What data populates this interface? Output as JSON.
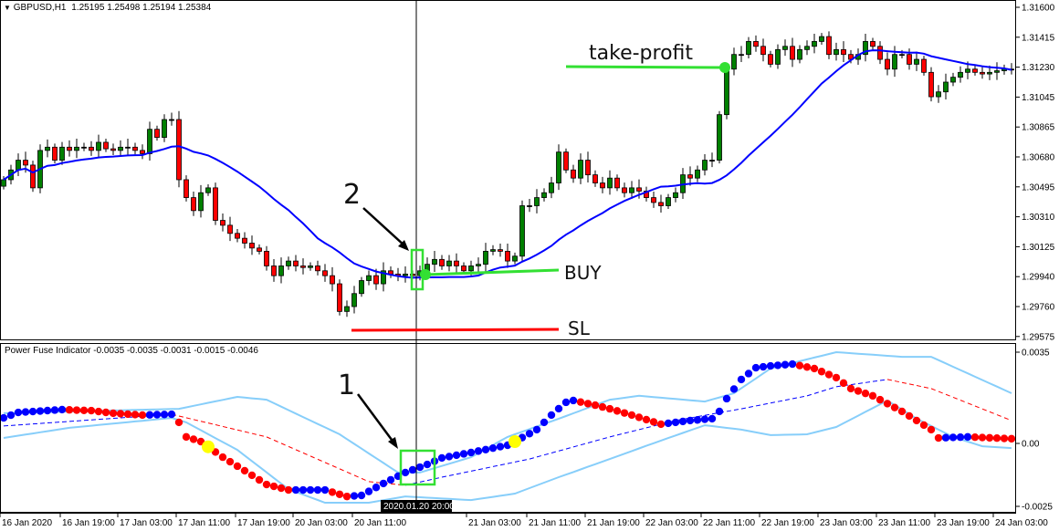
{
  "main_pane": {
    "symbol_label": "GBPUSD,H1",
    "ohlc_readout": "1.25195 1.25498 1.25194 1.25384",
    "menu_icon": "triangle-down-icon"
  },
  "indicator_pane": {
    "label": "Power Fuse Indicator -0.0035 -0.0035 -0.0031 -0.0015 -0.0046"
  },
  "annotations": {
    "take_profit": "take-profit",
    "buy": "BUY",
    "sl": "SL",
    "marker_1": "1",
    "marker_2": "2"
  },
  "crosshair": {
    "time_label": "2020.01.20 20:00"
  },
  "colors": {
    "bull": "#008000",
    "bear": "#ff0000",
    "ma": "#0000ff",
    "band": "#87cefa",
    "signal_up": "#0000ff",
    "signal_down": "#ff0000",
    "dot_up": "#0000ff",
    "dot_down": "#ff0000",
    "dot_signal": "#ffff00",
    "annotation_green": "#33e033",
    "sl_red": "#ff0000"
  },
  "price_axis": [
    "1.31600",
    "1.31415",
    "1.31230",
    "1.31045",
    "1.30865",
    "1.30680",
    "1.30495",
    "1.30310",
    "1.30125",
    "1.29940",
    "1.29760",
    "1.29575"
  ],
  "indicator_axis": [
    "0.0035",
    "0.00",
    "-0.0025"
  ],
  "time_axis": [
    "16 Jan 2020",
    "16 Jan 19:00",
    "17 Jan 03:00",
    "17 Jan 11:00",
    "17 Jan 19:00",
    "20 Jan 03:00",
    "20 Jan 11:00",
    "21 Jan 03:00",
    "21 Jan 11:00",
    "21 Jan 19:00",
    "22 Jan 03:00",
    "22 Jan 11:00",
    "22 Jan 19:00",
    "23 Jan 03:00",
    "23 Jan 11:00",
    "23 Jan 19:00",
    "24 Jan 03:00"
  ],
  "chart_data": [
    {
      "type": "candlestick",
      "title": "GBPUSD,H1",
      "ylim": [
        1.29575,
        1.316
      ],
      "close": [
        1.3054,
        1.306,
        1.3066,
        1.3063,
        1.3049,
        1.3072,
        1.3074,
        1.3066,
        1.3074,
        1.3072,
        1.3074,
        1.3074,
        1.3072,
        1.3077,
        1.3073,
        1.3072,
        1.3074,
        1.3074,
        1.3072,
        1.307,
        1.3085,
        1.308,
        1.3091,
        1.3091,
        1.3054,
        1.3043,
        1.3035,
        1.3046,
        1.3049,
        1.3029,
        1.3026,
        1.3021,
        1.3018,
        1.3015,
        1.3012,
        1.301,
        1.3001,
        1.2995,
        1.3001,
        1.3004,
        1.3001,
        1.3,
        1.3001,
        1.2998,
        1.2995,
        1.299,
        1.2973,
        1.2976,
        1.2984,
        1.2992,
        1.2995,
        1.299,
        1.2998,
        1.2996,
        1.2995,
        1.2996,
        1.2995,
        1.2998,
        1.3002,
        1.3005,
        1.3001,
        1.3004,
        1.3001,
        1.2998,
        1.3001,
        1.3002,
        1.301,
        1.3011,
        1.301,
        1.3004,
        1.3007,
        1.3038,
        1.3038,
        1.3043,
        1.3046,
        1.3052,
        1.3071,
        1.306,
        1.3055,
        1.3066,
        1.3057,
        1.3052,
        1.3049,
        1.3055,
        1.3049,
        1.3046,
        1.3049,
        1.3047,
        1.3043,
        1.304,
        1.3038,
        1.3043,
        1.3046,
        1.3057,
        1.3055,
        1.306,
        1.3066,
        1.3066,
        1.3094,
        1.3122,
        1.3131,
        1.3131,
        1.3139,
        1.3136,
        1.3131,
        1.3125,
        1.3134,
        1.3136,
        1.3128,
        1.3134,
        1.3136,
        1.3139,
        1.3142,
        1.3131,
        1.3134,
        1.3131,
        1.3128,
        1.3131,
        1.3139,
        1.3136,
        1.3128,
        1.3122,
        1.3131,
        1.3131,
        1.3125,
        1.3128,
        1.312,
        1.3105,
        1.3108,
        1.3114,
        1.3117,
        1.312,
        1.3122,
        1.312,
        1.3119,
        1.312,
        1.3121,
        1.3122,
        1.3122
      ],
      "moving_average_period": 20
    },
    {
      "type": "line",
      "title": "Power Fuse Indicator",
      "ylim": [
        -0.0025,
        0.0035
      ],
      "series": [
        {
          "role": "main-dots",
          "points": [
            [
              0,
              0.00098
            ],
            [
              2,
              0.00119
            ],
            [
              8,
              0.0013
            ],
            [
              12,
              0.00126
            ],
            [
              15,
              0.00116
            ],
            [
              19,
              0.00109
            ],
            [
              23,
              0.00112
            ],
            [
              24,
              0.00081
            ],
            [
              25,
              0.00025
            ],
            [
              27,
              7e-05
            ],
            [
              30,
              -0.00053
            ],
            [
              33,
              -0.00105
            ],
            [
              36,
              -0.00158
            ],
            [
              39,
              -0.00179
            ],
            [
              44,
              -0.00179
            ],
            [
              47,
              -0.00204
            ],
            [
              49,
              -0.002
            ],
            [
              52,
              -0.00154
            ],
            [
              55,
              -0.00112
            ],
            [
              58,
              -0.00081
            ],
            [
              60,
              -0.00056
            ],
            [
              64,
              -0.00035
            ],
            [
              69,
              -7e-05
            ],
            [
              70,
              7e-05
            ],
            [
              73,
              0.00053
            ],
            [
              75,
              0.00109
            ],
            [
              77,
              0.00158
            ],
            [
              78,
              0.00165
            ],
            [
              81,
              0.00147
            ],
            [
              83,
              0.00133
            ],
            [
              86,
              0.00109
            ],
            [
              90,
              0.00074
            ],
            [
              94,
              0.00088
            ],
            [
              97,
              0.00095
            ],
            [
              98,
              0.00123
            ],
            [
              99,
              0.00172
            ],
            [
              101,
              0.00246
            ],
            [
              103,
              0.00291
            ],
            [
              105,
              0.00298
            ],
            [
              108,
              0.00305
            ],
            [
              111,
              0.00288
            ],
            [
              114,
              0.00253
            ],
            [
              116,
              0.00211
            ],
            [
              119,
              0.00183
            ],
            [
              123,
              0.00123
            ],
            [
              127,
              0.00053
            ],
            [
              128,
              0.00021
            ],
            [
              132,
              0.00025
            ],
            [
              138,
              0.00018
            ]
          ]
        },
        {
          "role": "upper-band",
          "points": [
            [
              0,
              0.00116
            ],
            [
              24,
              0.00133
            ],
            [
              32,
              0.00179
            ],
            [
              36,
              0.00168
            ],
            [
              46,
              0.00035
            ],
            [
              54,
              -0.00112
            ],
            [
              57,
              -0.00112
            ],
            [
              64,
              -0.00053
            ],
            [
              69,
              0.00025
            ],
            [
              76,
              0.00095
            ],
            [
              83,
              0.00168
            ],
            [
              87,
              0.00183
            ],
            [
              96,
              0.00161
            ],
            [
              100,
              0.00193
            ],
            [
              105,
              0.00288
            ],
            [
              114,
              0.00351
            ],
            [
              123,
              0.00333
            ],
            [
              127,
              0.00333
            ],
            [
              138,
              0.00193
            ]
          ]
        },
        {
          "role": "lower-band",
          "points": [
            [
              0,
              0.00021
            ],
            [
              9,
              0.0006
            ],
            [
              23,
              0.00098
            ],
            [
              25,
              0.00081
            ],
            [
              32,
              -0.00025
            ],
            [
              39,
              -0.00176
            ],
            [
              44,
              -0.00228
            ],
            [
              50,
              -0.00228
            ],
            [
              55,
              -0.00204
            ],
            [
              64,
              -0.00218
            ],
            [
              70,
              -0.00193
            ],
            [
              76,
              -0.0013
            ],
            [
              83,
              -0.0006
            ],
            [
              90,
              0.00011
            ],
            [
              96,
              0.0007
            ],
            [
              101,
              0.00053
            ],
            [
              105,
              0.00032
            ],
            [
              110,
              0.00035
            ],
            [
              114,
              0.00063
            ],
            [
              121,
              0.00165
            ],
            [
              125,
              0.00095
            ],
            [
              130,
              0.00025
            ],
            [
              134,
              -0.00011
            ],
            [
              138,
              -0.00018
            ]
          ]
        },
        {
          "role": "signal-dashed",
          "points": [
            [
              0,
              0.00067
            ],
            [
              23,
              0.00112
            ],
            [
              36,
              0.00025
            ],
            [
              50,
              -0.00147
            ],
            [
              55,
              -0.00161
            ],
            [
              60,
              -0.0013
            ],
            [
              72,
              -0.0006
            ],
            [
              83,
              0.00025
            ],
            [
              92,
              0.00088
            ],
            [
              101,
              0.00133
            ],
            [
              110,
              0.00183
            ],
            [
              114,
              0.00218
            ],
            [
              121,
              0.00246
            ],
            [
              127,
              0.00211
            ],
            [
              138,
              0.00088
            ]
          ]
        }
      ],
      "signal_bars": [
        28,
        70
      ]
    }
  ]
}
